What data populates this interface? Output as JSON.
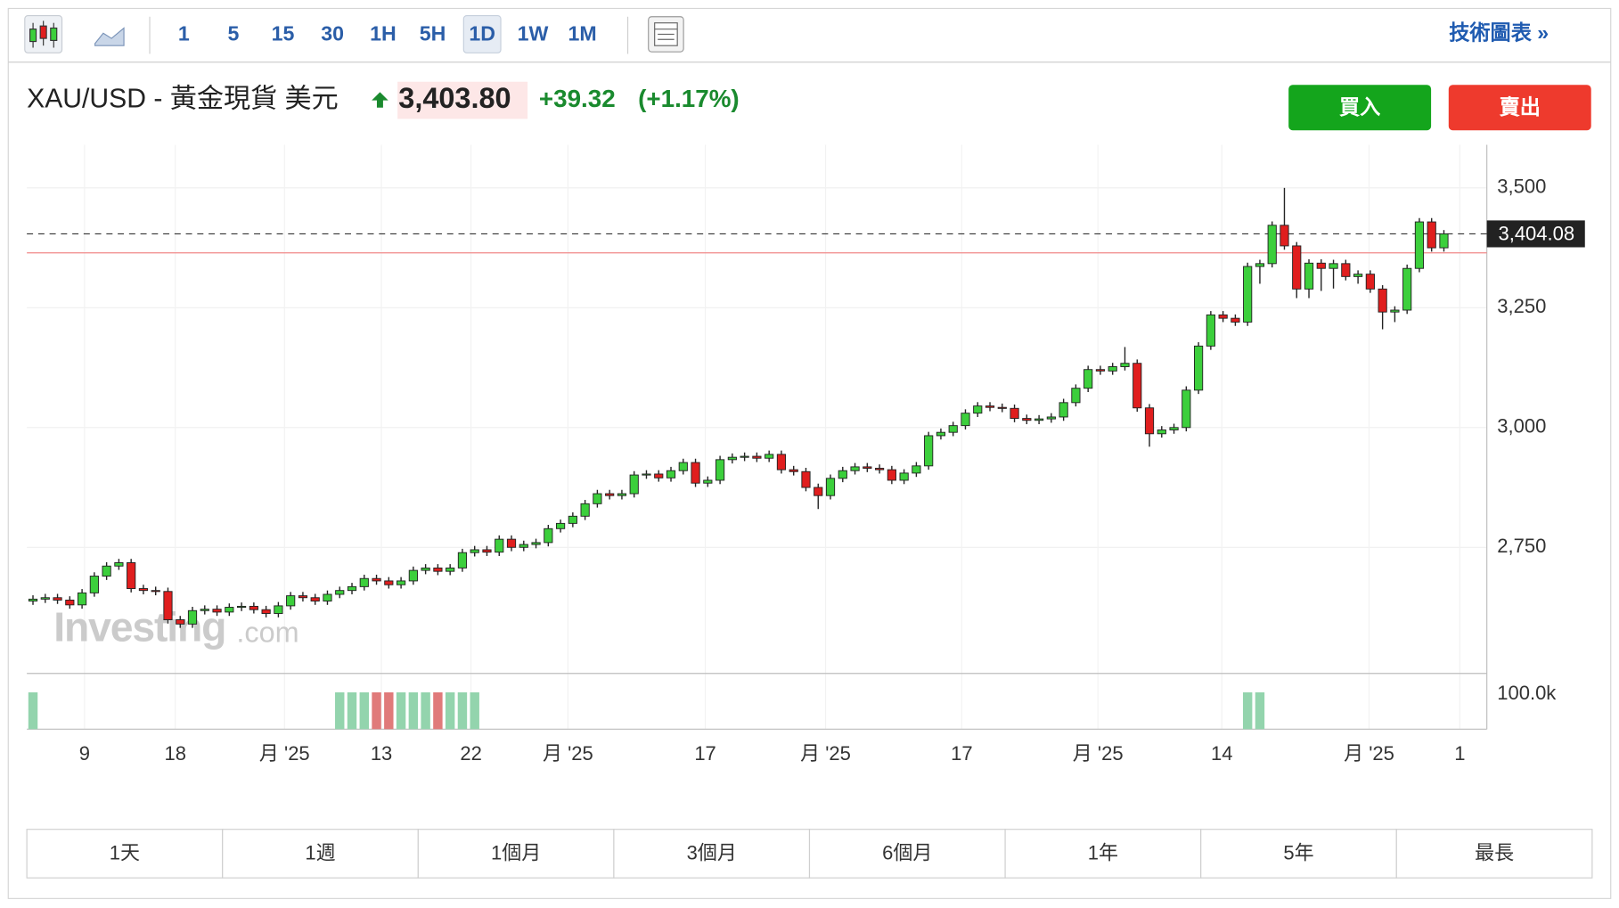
{
  "toolbar": {
    "intervals": [
      "1",
      "5",
      "15",
      "30",
      "1H",
      "5H",
      "1D",
      "1W",
      "1M"
    ],
    "active": "1D",
    "link": "技術圖表 »"
  },
  "header": {
    "symbol": "XAU/USD - 黃金現貨 美元",
    "price": "3,403.80",
    "change": "+39.32",
    "change_pct": "(+1.17%)"
  },
  "buttons": {
    "buy": "買入",
    "sell": "賣出"
  },
  "watermark": {
    "brand": "Investing",
    "suffix": ".com"
  },
  "ranges": [
    "1天",
    "1週",
    "1個月",
    "3個月",
    "6個月",
    "1年",
    "5年",
    "最長"
  ],
  "chart_data": {
    "type": "candlestick",
    "open": [
      2638,
      2642,
      2645,
      2640,
      2630,
      2655,
      2690,
      2711,
      2718,
      2664,
      2660,
      2658,
      2599,
      2590,
      2618,
      2621,
      2615,
      2625,
      2627,
      2620,
      2612,
      2628,
      2649,
      2645,
      2638,
      2652,
      2660,
      2668,
      2685,
      2680,
      2672,
      2680,
      2702,
      2707,
      2700,
      2707,
      2739,
      2745,
      2740,
      2767,
      2750,
      2756,
      2760,
      2789,
      2800,
      2815,
      2841,
      2862,
      2858,
      2862,
      2901,
      2903,
      2895,
      2910,
      2927,
      2884,
      2890,
      2933,
      2938,
      2940,
      2936,
      2944,
      2912,
      2908,
      2875,
      2858,
      2894,
      2910,
      2918,
      2915,
      2912,
      2890,
      2905,
      2920,
      2983,
      2990,
      3004,
      3030,
      3045,
      3042,
      3040,
      3019,
      3015,
      3018,
      3022,
      3052,
      3082,
      3121,
      3118,
      3127,
      3134,
      3041,
      2987,
      2995,
      3000,
      3078,
      3170,
      3235,
      3228,
      3220,
      3336,
      3342,
      3422,
      3379,
      3289,
      3343,
      3332,
      3342,
      3315,
      3320,
      3289,
      3241,
      3245,
      3332,
      3429,
      3375
    ],
    "high": [
      2650,
      2653,
      2653,
      2648,
      2663,
      2698,
      2719,
      2726,
      2726,
      2672,
      2668,
      2666,
      2607,
      2626,
      2629,
      2629,
      2633,
      2635,
      2635,
      2628,
      2636,
      2657,
      2657,
      2653,
      2660,
      2668,
      2676,
      2693,
      2693,
      2688,
      2688,
      2710,
      2715,
      2715,
      2715,
      2747,
      2753,
      2753,
      2775,
      2775,
      2764,
      2768,
      2797,
      2808,
      2823,
      2849,
      2870,
      2870,
      2870,
      2909,
      2911,
      2911,
      2918,
      2935,
      2935,
      2898,
      2941,
      2946,
      2948,
      2948,
      2952,
      2952,
      2920,
      2916,
      2883,
      2902,
      2918,
      2926,
      2926,
      2923,
      2920,
      2913,
      2928,
      2991,
      2998,
      3012,
      3038,
      3053,
      3053,
      3050,
      3048,
      3027,
      3026,
      3030,
      3060,
      3090,
      3129,
      3129,
      3135,
      3168,
      3142,
      3049,
      3003,
      3008,
      3086,
      3178,
      3243,
      3243,
      3236,
      3344,
      3350,
      3430,
      3500,
      3387,
      3351,
      3351,
      3350,
      3350,
      3328,
      3328,
      3297,
      3253,
      3340,
      3437,
      3437,
      3412
    ],
    "low": [
      2630,
      2634,
      2632,
      2622,
      2622,
      2647,
      2682,
      2703,
      2656,
      2652,
      2650,
      2591,
      2582,
      2582,
      2610,
      2607,
      2607,
      2617,
      2612,
      2604,
      2604,
      2620,
      2637,
      2630,
      2630,
      2644,
      2652,
      2660,
      2672,
      2664,
      2664,
      2672,
      2694,
      2692,
      2692,
      2699,
      2731,
      2732,
      2732,
      2742,
      2742,
      2748,
      2752,
      2781,
      2792,
      2807,
      2833,
      2850,
      2850,
      2854,
      2893,
      2887,
      2887,
      2902,
      2876,
      2876,
      2882,
      2925,
      2930,
      2928,
      2928,
      2904,
      2900,
      2867,
      2830,
      2850,
      2886,
      2902,
      2907,
      2904,
      2882,
      2882,
      2897,
      2912,
      2975,
      2982,
      2996,
      3022,
      3034,
      3032,
      3011,
      3007,
      3007,
      3010,
      3014,
      3044,
      3074,
      3110,
      3110,
      3119,
      3033,
      2960,
      2979,
      2987,
      2992,
      3070,
      3162,
      3220,
      3212,
      3212,
      3300,
      3334,
      3371,
      3270,
      3270,
      3285,
      3290,
      3307,
      3300,
      3281,
      3205,
      3220,
      3237,
      3324,
      3367,
      3367
    ],
    "close": [
      2642,
      2645,
      2640,
      2630,
      2655,
      2690,
      2711,
      2718,
      2664,
      2660,
      2658,
      2599,
      2590,
      2618,
      2621,
      2615,
      2625,
      2627,
      2620,
      2612,
      2628,
      2649,
      2645,
      2638,
      2652,
      2660,
      2668,
      2685,
      2680,
      2672,
      2680,
      2702,
      2707,
      2700,
      2707,
      2739,
      2745,
      2740,
      2767,
      2750,
      2756,
      2760,
      2789,
      2800,
      2815,
      2841,
      2862,
      2858,
      2862,
      2901,
      2903,
      2895,
      2910,
      2927,
      2884,
      2890,
      2933,
      2938,
      2940,
      2936,
      2944,
      2912,
      2908,
      2875,
      2858,
      2894,
      2910,
      2918,
      2915,
      2912,
      2890,
      2905,
      2920,
      2983,
      2990,
      3004,
      3030,
      3045,
      3042,
      3040,
      3019,
      3015,
      3018,
      3022,
      3052,
      3082,
      3121,
      3118,
      3127,
      3134,
      3041,
      2987,
      2995,
      3000,
      3078,
      3170,
      3235,
      3228,
      3220,
      3336,
      3342,
      3422,
      3379,
      3289,
      3343,
      3332,
      3342,
      3315,
      3320,
      3289,
      3241,
      3245,
      3332,
      3429,
      3375,
      3404.08
    ],
    "volume": [
      105000,
      null,
      null,
      null,
      null,
      null,
      null,
      null,
      null,
      null,
      null,
      null,
      null,
      null,
      null,
      null,
      null,
      null,
      null,
      null,
      null,
      null,
      null,
      null,
      null,
      105000,
      105000,
      105000,
      105000,
      105000,
      105000,
      105000,
      105000,
      105000,
      105000,
      105000,
      105000,
      null,
      null,
      null,
      null,
      null,
      null,
      null,
      null,
      null,
      null,
      null,
      null,
      null,
      null,
      null,
      null,
      null,
      null,
      null,
      null,
      null,
      null,
      null,
      null,
      null,
      null,
      null,
      null,
      null,
      null,
      null,
      null,
      null,
      null,
      null,
      null,
      null,
      null,
      null,
      null,
      null,
      null,
      null,
      null,
      null,
      null,
      null,
      null,
      null,
      null,
      null,
      null,
      null,
      null,
      null,
      null,
      null,
      null,
      null,
      null,
      null,
      null,
      105000,
      105000,
      null,
      null,
      null,
      null,
      null,
      null,
      null,
      null,
      null,
      null,
      null,
      null,
      null,
      null,
      null
    ],
    "up_color": "#3ccf3c",
    "down_color": "#e01e1e",
    "volume_up_color": "#93d4ad",
    "volume_down_color": "#e07a7a",
    "ylim": [
      2487,
      3590
    ],
    "yticks": [
      {
        "value": 2750,
        "label": "2,750"
      },
      {
        "value": 3000,
        "label": "3,000"
      },
      {
        "value": 3250,
        "label": "3,250"
      },
      {
        "value": 3500,
        "label": "3,500"
      }
    ],
    "volume_ylim": [
      0,
      159000
    ],
    "volume_yticks": [
      {
        "value": 100000,
        "label": "100.0k"
      }
    ],
    "xlim": [
      -0.5,
      118.5
    ],
    "xticks": [
      {
        "value": 4.2,
        "label": "9"
      },
      {
        "value": 11.6,
        "label": "18"
      },
      {
        "value": 20.5,
        "label": "月 '25"
      },
      {
        "value": 28.4,
        "label": "13"
      },
      {
        "value": 35.7,
        "label": "22"
      },
      {
        "value": 43.6,
        "label": "月 '25"
      },
      {
        "value": 54.8,
        "label": "17"
      },
      {
        "value": 64.6,
        "label": "月 '25"
      },
      {
        "value": 75.7,
        "label": "17"
      },
      {
        "value": 86.8,
        "label": "月 '25"
      },
      {
        "value": 96.9,
        "label": "14"
      },
      {
        "value": 108.9,
        "label": "月 '25"
      },
      {
        "value": 116.3,
        "label": "1"
      }
    ],
    "current_price": {
      "value": 3404.08,
      "label": "3,404.08"
    },
    "previous_close": 3364.48,
    "grid": true
  }
}
